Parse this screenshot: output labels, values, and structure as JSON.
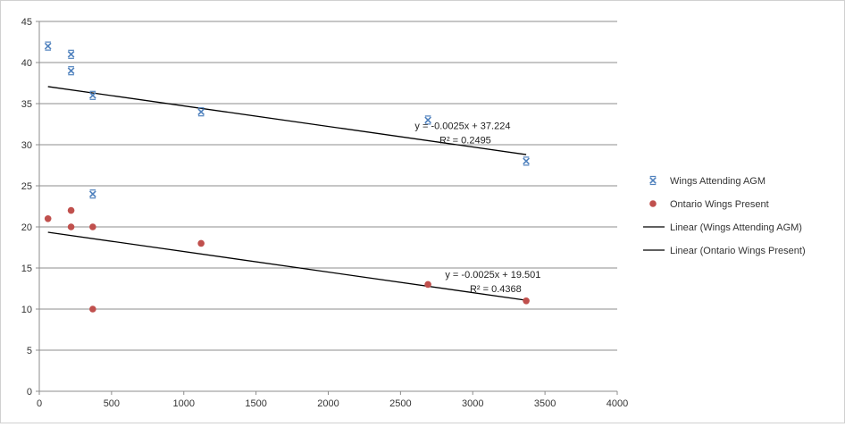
{
  "chart_data": {
    "type": "scatter",
    "title": "",
    "xlabel": "",
    "ylabel": "",
    "xlim": [
      0,
      4000
    ],
    "ylim": [
      0,
      45
    ],
    "x_ticks": [
      0,
      500,
      1000,
      1500,
      2000,
      2500,
      3000,
      3500,
      4000
    ],
    "y_ticks": [
      0,
      5,
      10,
      15,
      20,
      25,
      30,
      35,
      40,
      45
    ],
    "grid": "horizontal major gridlines",
    "legend_position": "right",
    "series": [
      {
        "name": "Wings Attending AGM",
        "marker": "x",
        "color": "#4f81bd",
        "points": [
          {
            "x": 60,
            "y": 42
          },
          {
            "x": 220,
            "y": 41
          },
          {
            "x": 220,
            "y": 39
          },
          {
            "x": 370,
            "y": 36
          },
          {
            "x": 370,
            "y": 24
          },
          {
            "x": 1120,
            "y": 34
          },
          {
            "x": 2690,
            "y": 33
          },
          {
            "x": 3370,
            "y": 28
          }
        ]
      },
      {
        "name": "Ontario Wings Present",
        "marker": "circle",
        "color": "#c0504d",
        "points": [
          {
            "x": 60,
            "y": 21
          },
          {
            "x": 220,
            "y": 22
          },
          {
            "x": 220,
            "y": 20
          },
          {
            "x": 370,
            "y": 20
          },
          {
            "x": 370,
            "y": 10
          },
          {
            "x": 1120,
            "y": 18
          },
          {
            "x": 2690,
            "y": 13
          },
          {
            "x": 3370,
            "y": 11
          }
        ]
      }
    ],
    "trendlines": [
      {
        "name": "Linear (Wings Attending AGM)",
        "slope": -0.0025,
        "intercept": 37.224,
        "x_range": [
          60,
          3370
        ],
        "equation": "y = -0.0025x + 37.224",
        "r2": "R² = 0.2495",
        "label_at": {
          "x": 2930,
          "y": 31.9
        },
        "color": "#000000"
      },
      {
        "name": "Linear (Ontario Wings Present)",
        "slope": -0.0025,
        "intercept": 19.501,
        "x_range": [
          60,
          3370
        ],
        "equation": "y = -0.0025x + 19.501",
        "r2": "R² = 0.4368",
        "label_at": {
          "x": 3140,
          "y": 13.8
        },
        "color": "#000000"
      }
    ]
  }
}
